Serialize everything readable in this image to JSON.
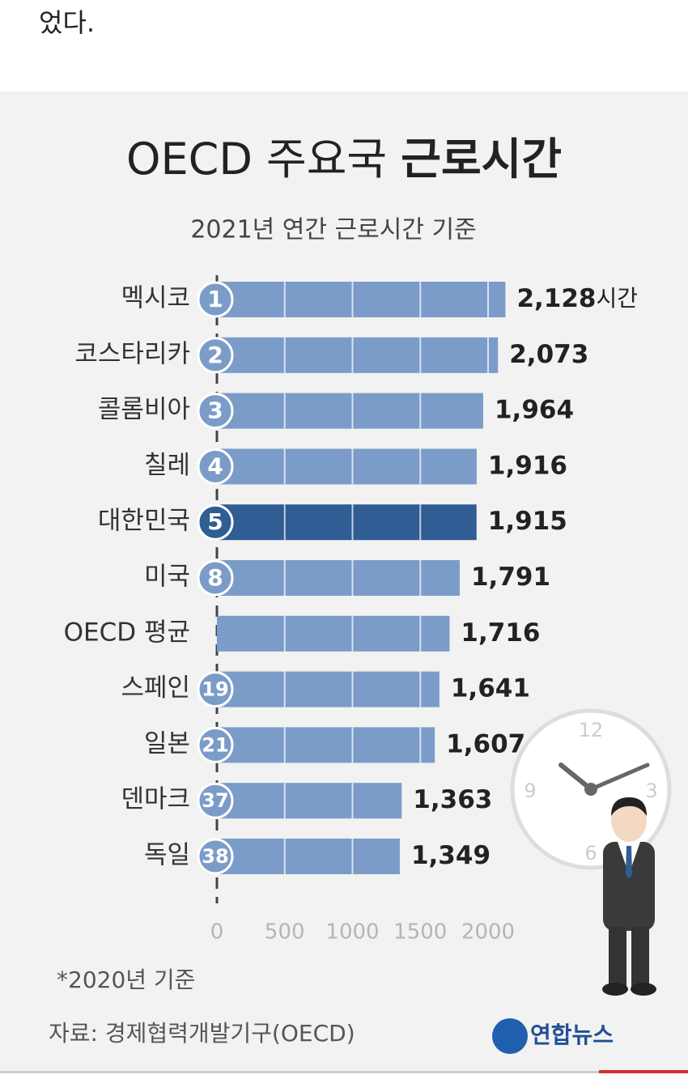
{
  "intro_text": "었다.",
  "chart_data": {
    "type": "bar",
    "orientation": "horizontal",
    "title": "OECD 주요국",
    "title_bold": "근로시간",
    "subtitle": "2021년 연간 근로시간 기준",
    "categories": [
      "멕시코",
      "코스타리카",
      "콜롬비아",
      "칠레",
      "대한민국",
      "미국",
      "OECD 평균",
      "스페인",
      "일본",
      "덴마크",
      "독일"
    ],
    "ranks": [
      "1",
      "2",
      "3",
      "4",
      "5",
      "8",
      null,
      "19",
      "21",
      "37",
      "38"
    ],
    "values": [
      2128,
      2073,
      1964,
      1916,
      1915,
      1791,
      1716,
      1641,
      1607,
      1363,
      1349
    ],
    "value_labels": [
      "2,128",
      "2,073",
      "1,964",
      "1,916",
      "1,915",
      "1,791",
      "1,716",
      "1,641",
      "1,607",
      "1,363",
      "1,349"
    ],
    "unit": "시간",
    "colors": [
      "#7b9cc8",
      "#7b9cc8",
      "#7b9cc8",
      "#7b9cc8",
      "#2f5d94",
      "#7b9cc8",
      "#7b9cc8",
      "#7b9cc8",
      "#7b9cc8",
      "#7b9cc8",
      "#7b9cc8"
    ],
    "xlim": [
      0,
      2000
    ],
    "xticks": [
      0,
      500,
      1000,
      1500,
      2000
    ],
    "grid": true,
    "footnote": "*2020년 기준",
    "source": "자료: 경제협력개발기구(OECD)",
    "logo": "연합뉴스",
    "clock_labels": [
      "12",
      "3",
      "6",
      "9"
    ]
  }
}
